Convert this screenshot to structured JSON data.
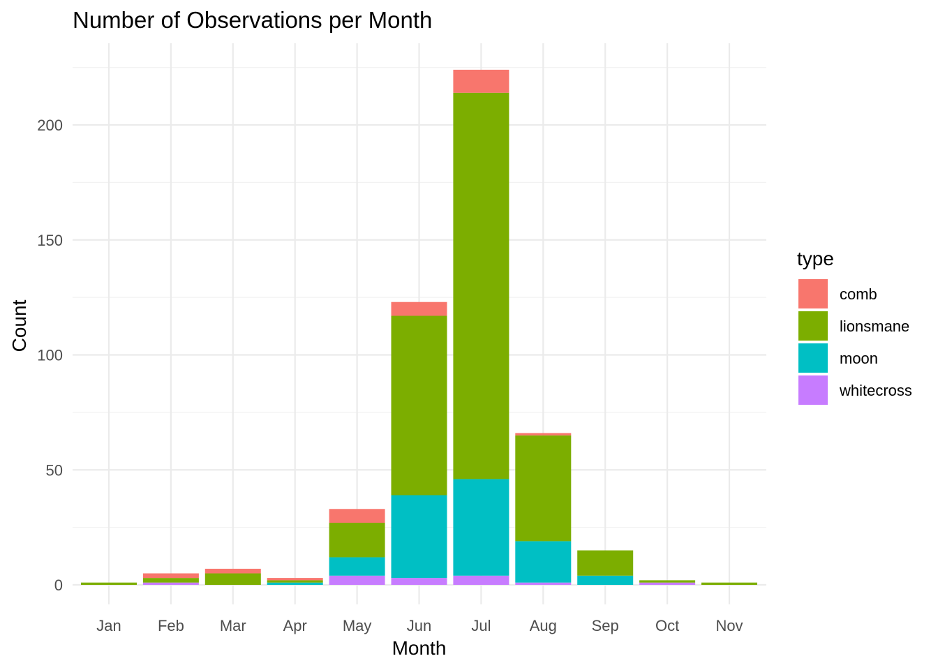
{
  "chart_data": {
    "type": "bar",
    "stacked": true,
    "title": "Number of Observations per Month",
    "xlabel": "Month",
    "ylabel": "Count",
    "ylim": [
      -9,
      233
    ],
    "yticks": [
      0,
      50,
      100,
      150,
      200
    ],
    "grid": true,
    "legend": {
      "title": "type",
      "placement": "right"
    },
    "categories": [
      "Jan",
      "Feb",
      "Mar",
      "Apr",
      "May",
      "Jun",
      "Jul",
      "Aug",
      "Sep",
      "Oct",
      "Nov"
    ],
    "series": [
      {
        "name": "whitecross",
        "color": "#C77CFF",
        "values": [
          0,
          1,
          0,
          0,
          4,
          3,
          4,
          1,
          0,
          1,
          0
        ]
      },
      {
        "name": "moon",
        "color": "#00BFC4",
        "values": [
          0,
          0,
          0,
          1,
          8,
          36,
          42,
          18,
          4,
          0,
          0
        ]
      },
      {
        "name": "lionsmane",
        "color": "#7CAE00",
        "values": [
          1,
          2,
          5,
          1,
          15,
          78,
          168,
          46,
          11,
          1,
          1
        ]
      },
      {
        "name": "comb",
        "color": "#F8766D",
        "values": [
          0,
          2,
          2,
          1,
          6,
          6,
          10,
          1,
          0,
          0,
          0
        ]
      }
    ],
    "legend_order": [
      "comb",
      "lionsmane",
      "moon",
      "whitecross"
    ]
  }
}
